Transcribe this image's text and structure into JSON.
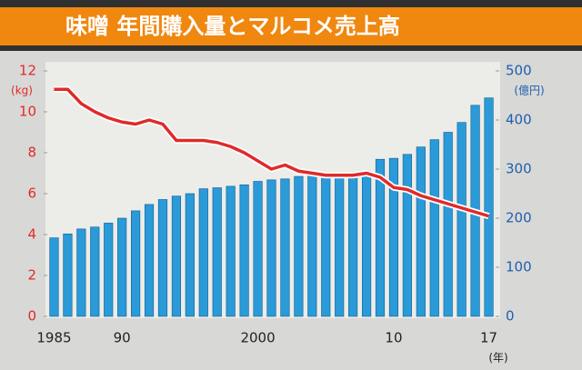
{
  "chart_data": {
    "type": "bar-line",
    "title": "味噌 年間購入量とマルコメ売上高",
    "y_unit": "(kg)",
    "y2_unit": "(億円)",
    "x_unit": "(年)",
    "categories": [
      "1985",
      null,
      null,
      null,
      null,
      "90",
      null,
      null,
      null,
      null,
      null,
      null,
      null,
      null,
      null,
      "2000",
      null,
      null,
      null,
      null,
      null,
      null,
      null,
      null,
      null,
      "10",
      null,
      null,
      null,
      null,
      null,
      null,
      "17"
    ],
    "ylim": [
      0,
      12
    ],
    "yticks": [
      0,
      2,
      4,
      6,
      8,
      10,
      12
    ],
    "y2lim": [
      0,
      500
    ],
    "y2ticks": [
      0,
      100,
      200,
      300,
      400,
      500
    ],
    "series": [
      {
        "name": "マルコメ売上高",
        "type": "bar",
        "axis": "y2",
        "color": "#2a9ad8",
        "values": [
          160,
          168,
          178,
          182,
          190,
          200,
          215,
          228,
          238,
          245,
          250,
          260,
          262,
          265,
          268,
          275,
          278,
          280,
          285,
          290,
          292,
          292,
          292,
          293,
          320,
          322,
          330,
          345,
          360,
          375,
          395,
          430,
          445
        ]
      },
      {
        "name": "味噌 年間購入量",
        "type": "line",
        "axis": "y",
        "color": "#e02a2a",
        "values": [
          11.1,
          11.1,
          10.4,
          10.0,
          9.7,
          9.5,
          9.4,
          9.6,
          9.4,
          8.6,
          8.6,
          8.6,
          8.5,
          8.3,
          8.0,
          7.6,
          7.2,
          7.4,
          7.1,
          7.0,
          6.9,
          6.9,
          6.9,
          7.0,
          6.8,
          6.3,
          6.2,
          5.9,
          5.7,
          5.5,
          5.3,
          5.1,
          4.9
        ]
      }
    ]
  }
}
